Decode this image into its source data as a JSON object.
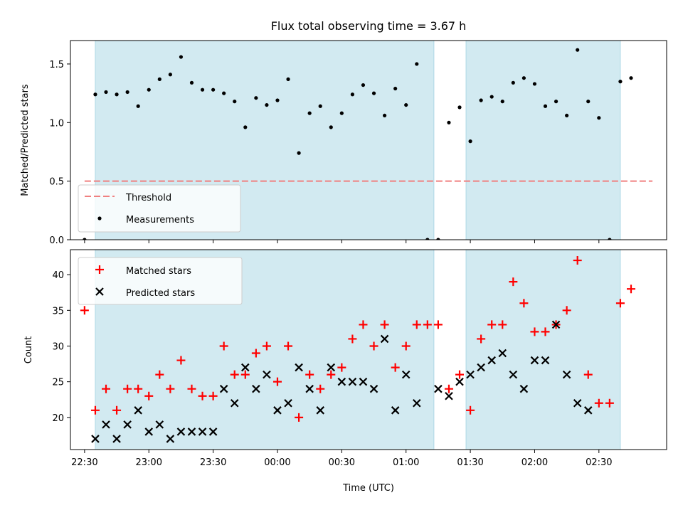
{
  "chart_data": {
    "type": "scatter",
    "title": "Flux total observing time = 3.67 h",
    "xlabel": "Time (UTC)",
    "x_tick_labels": [
      "22:30",
      "23:00",
      "23:30",
      "00:00",
      "00:30",
      "01:00",
      "01:30",
      "02:00",
      "02:30"
    ],
    "x_tick_minutes": [
      -90,
      -60,
      -30,
      0,
      30,
      60,
      90,
      120,
      150
    ],
    "xlim_minutes": [
      -96.6,
      181.6
    ],
    "observing_windows_minutes": [
      [
        -85,
        73
      ],
      [
        88,
        160
      ]
    ],
    "colors": {
      "window_fill": "#add8e6",
      "threshold": "#f08080",
      "measurement": "#000000",
      "matched": "#ff0000",
      "predicted": "#000000"
    },
    "panels": [
      {
        "name": "ratio",
        "ylabel": "Matched/Predicted stars",
        "ylim": [
          0.0,
          1.7
        ],
        "y_ticks": [
          0.0,
          0.5,
          1.0,
          1.5
        ],
        "y_tick_labels": [
          "0.0",
          "0.5",
          "1.0",
          "1.5"
        ],
        "threshold": {
          "name": "Threshold",
          "value": 0.5,
          "x_range": [
            -90,
            175
          ]
        },
        "series": [
          {
            "name": "Measurements",
            "marker": "dot",
            "x": [
              -90,
              -85,
              -80,
              -75,
              -70,
              -65,
              -60,
              -55,
              -50,
              -45,
              -40,
              -35,
              -30,
              -25,
              -20,
              -15,
              -10,
              -5,
              0,
              5,
              10,
              15,
              20,
              25,
              30,
              35,
              40,
              45,
              50,
              55,
              60,
              65,
              70,
              75,
              80,
              85,
              90,
              95,
              100,
              105,
              110,
              115,
              120,
              125,
              130,
              135,
              140,
              145,
              150,
              155,
              160,
              165
            ],
            "y": [
              0.0,
              1.24,
              1.26,
              1.24,
              1.26,
              1.14,
              1.28,
              1.37,
              1.41,
              1.56,
              1.34,
              1.28,
              1.28,
              1.25,
              1.18,
              0.96,
              1.21,
              1.15,
              1.19,
              1.37,
              0.74,
              1.08,
              1.14,
              0.96,
              1.08,
              1.24,
              1.32,
              1.25,
              1.06,
              1.29,
              1.15,
              1.5,
              0.0,
              0.0,
              1.0,
              1.13,
              0.84,
              1.19,
              1.22,
              1.18,
              1.34,
              1.38,
              1.33,
              1.14,
              1.18,
              1.06,
              1.62,
              1.18,
              1.04,
              0.0,
              1.35,
              1.38
            ]
          }
        ],
        "legend": {
          "placement": "lower-left",
          "entries": [
            "Threshold",
            "Measurements"
          ]
        }
      },
      {
        "name": "counts",
        "ylabel": "Count",
        "ylim": [
          15.5,
          43.5
        ],
        "y_ticks": [
          20,
          25,
          30,
          35,
          40
        ],
        "y_tick_labels": [
          "20",
          "25",
          "30",
          "35",
          "40"
        ],
        "series": [
          {
            "name": "Matched stars",
            "marker": "plus",
            "x": [
              -90,
              -85,
              -80,
              -75,
              -70,
              -65,
              -60,
              -55,
              -50,
              -45,
              -40,
              -35,
              -30,
              -25,
              -20,
              -15,
              -10,
              -5,
              0,
              5,
              10,
              15,
              20,
              25,
              30,
              35,
              40,
              45,
              50,
              55,
              60,
              65,
              70,
              75,
              80,
              85,
              90,
              95,
              100,
              105,
              110,
              115,
              120,
              125,
              130,
              135,
              140,
              145,
              150,
              155,
              160,
              165
            ],
            "y": [
              35,
              21,
              24,
              21,
              24,
              24,
              23,
              26,
              24,
              28,
              24,
              23,
              23,
              30,
              26,
              26,
              29,
              30,
              25,
              30,
              20,
              26,
              24,
              26,
              27,
              31,
              33,
              30,
              33,
              27,
              30,
              33,
              33,
              33,
              24,
              26,
              21,
              31,
              33,
              33,
              39,
              36,
              32,
              32,
              33,
              35,
              42,
              26,
              22,
              22,
              36,
              38
            ]
          },
          {
            "name": "Predicted stars",
            "marker": "x",
            "x": [
              -85,
              -80,
              -75,
              -70,
              -65,
              -60,
              -55,
              -50,
              -45,
              -40,
              -35,
              -30,
              -25,
              -20,
              -15,
              -10,
              -5,
              0,
              5,
              10,
              15,
              20,
              25,
              30,
              35,
              40,
              45,
              50,
              55,
              60,
              65,
              75,
              80,
              85,
              90,
              95,
              100,
              105,
              110,
              115,
              120,
              125,
              130,
              135,
              140,
              145
            ],
            "y": [
              17,
              19,
              17,
              19,
              21,
              18,
              19,
              17,
              18,
              18,
              18,
              18,
              24,
              22,
              27,
              24,
              26,
              21,
              22,
              27,
              24,
              21,
              27,
              25,
              25,
              25,
              24,
              31,
              21,
              26,
              22,
              24,
              23,
              25,
              26,
              27,
              28,
              29,
              26,
              24,
              28,
              28,
              33,
              26,
              22,
              21
            ]
          }
        ],
        "legend": {
          "placement": "upper-left",
          "entries": [
            "Matched stars",
            "Predicted stars"
          ]
        }
      }
    ]
  }
}
